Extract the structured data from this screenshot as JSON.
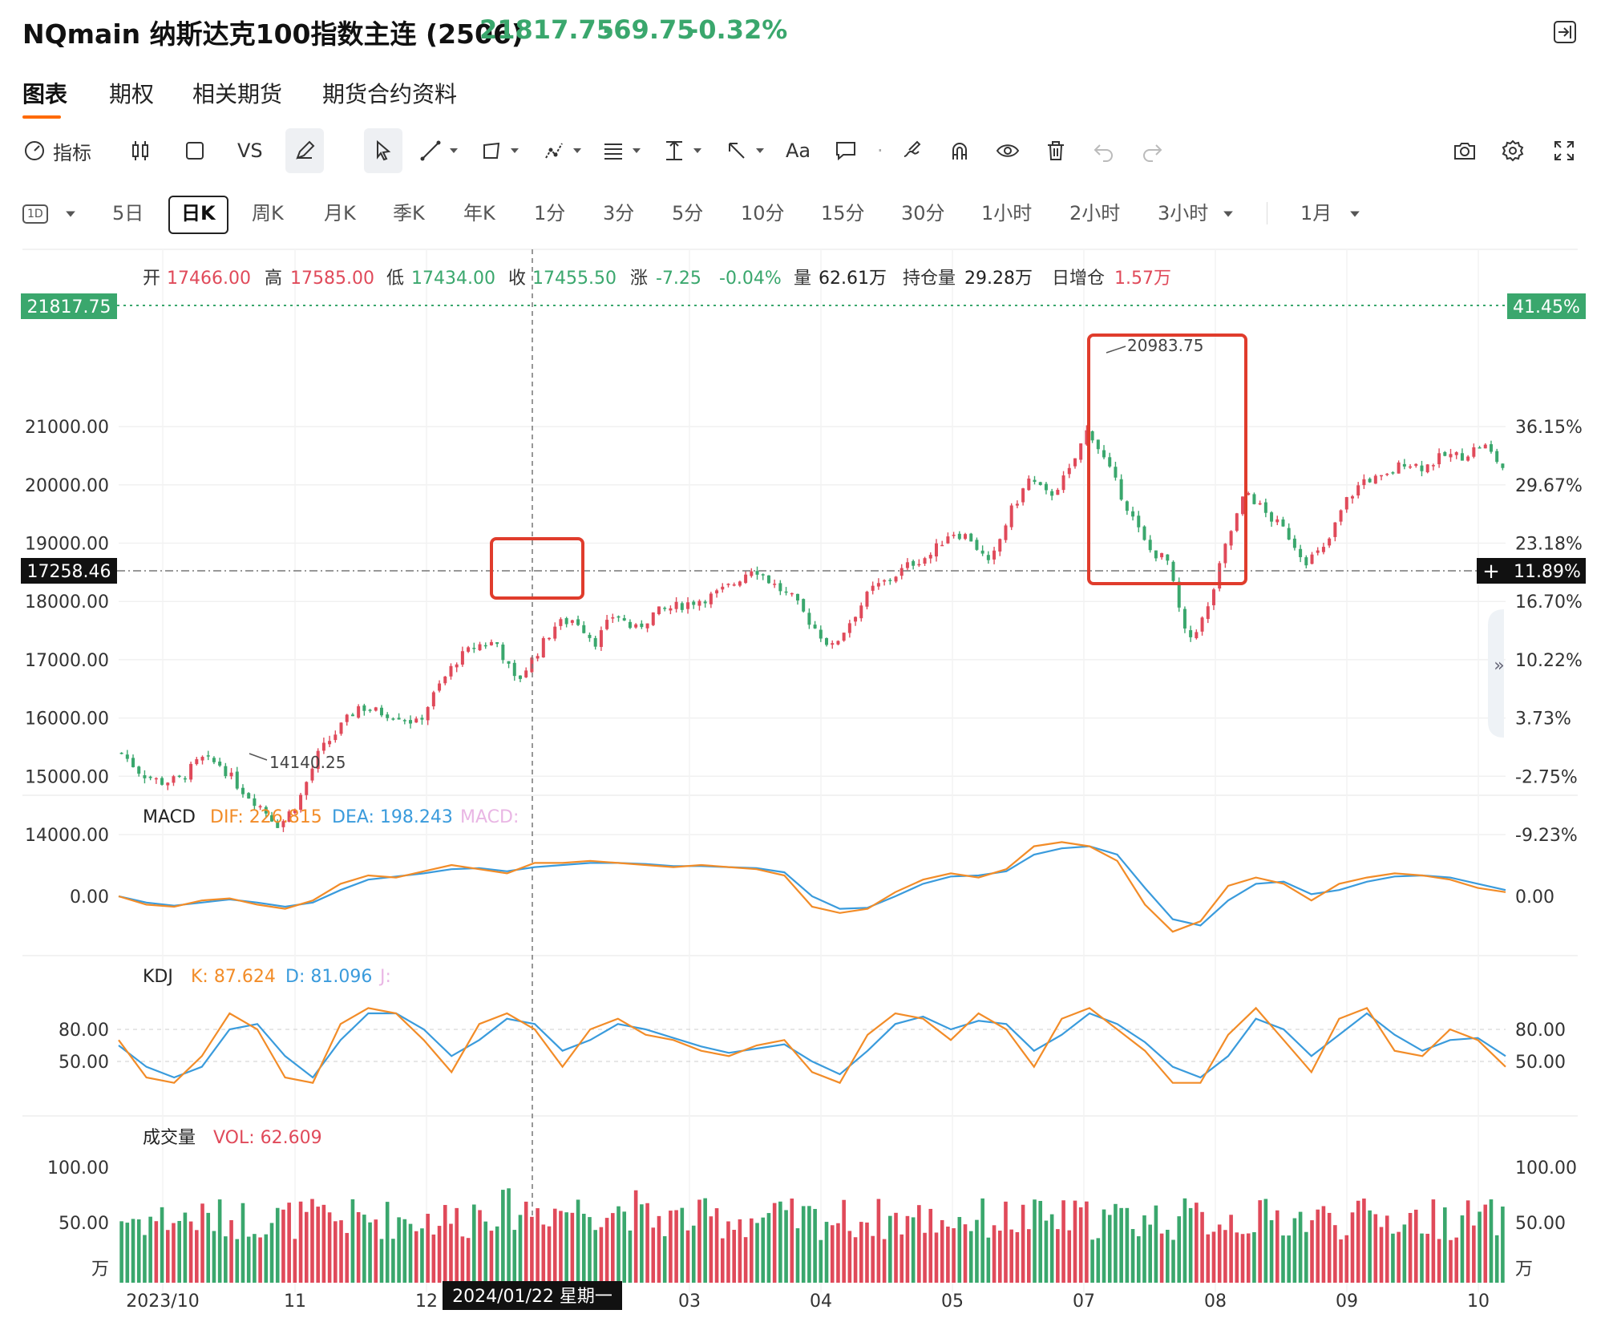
{
  "header": {
    "title": "NQmain 纳斯达克100指数主连 (2506)",
    "price": "21817.75",
    "change": "-69.75",
    "change_pct": "-0.32%",
    "quote_color": "#3aa76d"
  },
  "tabs": [
    {
      "label": "图表",
      "active": true
    },
    {
      "label": "期权",
      "active": false
    },
    {
      "label": "相关期货",
      "active": false
    },
    {
      "label": "期货合约资料",
      "active": false
    }
  ],
  "toolbar": {
    "indicator_label": "指标",
    "vs_label": "VS",
    "text_label": "Aa",
    "icons": [
      "gauge-icon",
      "candle-icon",
      "rectangle-icon",
      "pencil-icon",
      "cursor-icon",
      "line-tool-icon",
      "shape-tool-icon",
      "node-tool-icon",
      "fib-tool-icon",
      "measure-tool-icon",
      "arrow-tool-icon",
      "text-icon",
      "comment-icon",
      "magnet-icon",
      "brush-icon",
      "eye-icon",
      "trash-icon",
      "undo-icon",
      "redo-icon",
      "camera-icon",
      "gear-icon",
      "fullscreen-icon"
    ]
  },
  "periods": {
    "interval_badge": "1D",
    "items": [
      "5日",
      "日K",
      "周K",
      "月K",
      "季K",
      "年K",
      "1分",
      "3分",
      "5分",
      "10分",
      "15分",
      "30分",
      "1小时",
      "2小时",
      "3小时"
    ],
    "active": "日K",
    "range": "1月"
  },
  "ohlc_bar": {
    "open_label": "开",
    "open": "17466.00",
    "high_label": "高",
    "high": "17585.00",
    "low_label": "低",
    "low": "17434.00",
    "close_label": "收",
    "close": "17455.50",
    "chg_label": "涨",
    "chg": "-7.25",
    "chg_pct": "-0.04%",
    "vol_label": "量",
    "vol": "62.61万",
    "oi_label": "持仓量",
    "oi": "29.28万",
    "oi_chg_label": "日增仓",
    "oi_chg": "1.57万",
    "up_color": "#e04a5a",
    "down_color": "#3aa76d"
  },
  "chart_data": {
    "type": "candlestick",
    "price_axis_left": [
      "21000.00",
      "20000.00",
      "19000.00",
      "18000.00",
      "17000.00",
      "16000.00",
      "15000.00",
      "14000.00"
    ],
    "price_axis_right": [
      "36.15%",
      "29.67%",
      "23.18%",
      "16.70%",
      "10.22%",
      "3.73%",
      "-2.75%",
      "-9.23%"
    ],
    "last_price_tag": "21817.75",
    "last_pct_tag": "41.45%",
    "crosshair_price": "17258.46",
    "crosshair_pct": "11.89%",
    "crosshair_date": "2024/01/22 星期一",
    "annotations": {
      "max_label": "20983.75",
      "min_label": "14140.25"
    },
    "x_ticks": [
      "2023/10",
      "11",
      "12",
      "03",
      "04",
      "05",
      "07",
      "08",
      "09",
      "10"
    ],
    "price_path": [
      15400,
      15050,
      14900,
      14950,
      15300,
      15200,
      14800,
      14500,
      14150,
      14600,
      15400,
      15800,
      16200,
      16100,
      16050,
      15900,
      16500,
      17000,
      17250,
      17300,
      16600,
      17100,
      17600,
      17700,
      17300,
      17800,
      17500,
      17800,
      17900,
      18000,
      18100,
      18300,
      18600,
      18300,
      18050,
      17600,
      17200,
      17700,
      18200,
      18400,
      18650,
      18800,
      19200,
      19100,
      18600,
      19500,
      20100,
      19800,
      20200,
      20980,
      20300,
      19600,
      18900,
      18700,
      17300,
      17800,
      19000,
      19900,
      19500,
      19200,
      18700,
      18900,
      19700,
      20100,
      20100,
      20400,
      20300,
      20500,
      20500,
      20700,
      20300
    ],
    "macd": {
      "label": "MACD",
      "dif_label": "DIF: 226.815",
      "dea_label": "DEA: 198.243",
      "macd_label": "MACD:",
      "zero_label": "0.00",
      "dif": [
        0,
        -40,
        -50,
        -20,
        -10,
        -40,
        -60,
        -20,
        60,
        100,
        90,
        120,
        150,
        130,
        110,
        160,
        160,
        170,
        160,
        150,
        140,
        150,
        140,
        130,
        100,
        -50,
        -80,
        -60,
        20,
        80,
        110,
        90,
        130,
        240,
        260,
        240,
        170,
        -40,
        -170,
        -120,
        50,
        90,
        60,
        -20,
        60,
        90,
        110,
        100,
        80,
        40,
        20
      ],
      "dea": [
        0,
        -30,
        -45,
        -30,
        -15,
        -30,
        -50,
        -30,
        30,
        80,
        95,
        110,
        130,
        135,
        120,
        140,
        150,
        160,
        160,
        155,
        145,
        145,
        140,
        135,
        115,
        0,
        -60,
        -55,
        0,
        60,
        95,
        100,
        120,
        200,
        230,
        240,
        200,
        40,
        -110,
        -140,
        -20,
        60,
        70,
        10,
        30,
        70,
        95,
        100,
        90,
        60,
        30
      ]
    },
    "kdj": {
      "label": "KDJ",
      "k_label": "K: 87.624",
      "d_label": "D: 81.096",
      "j_label": "J:",
      "ticks": [
        "80.00",
        "50.00"
      ],
      "k": [
        70,
        35,
        30,
        55,
        95,
        80,
        35,
        30,
        85,
        100,
        95,
        70,
        40,
        85,
        95,
        80,
        45,
        80,
        90,
        75,
        70,
        60,
        55,
        65,
        70,
        40,
        30,
        75,
        95,
        90,
        70,
        95,
        80,
        45,
        90,
        100,
        80,
        60,
        30,
        30,
        75,
        100,
        70,
        40,
        90,
        100,
        60,
        55,
        80,
        70,
        45
      ],
      "d": [
        65,
        45,
        35,
        45,
        80,
        85,
        55,
        35,
        70,
        95,
        95,
        80,
        55,
        70,
        90,
        85,
        60,
        70,
        85,
        80,
        72,
        64,
        58,
        62,
        66,
        50,
        38,
        60,
        85,
        92,
        80,
        88,
        85,
        60,
        75,
        95,
        85,
        68,
        45,
        35,
        55,
        90,
        80,
        55,
        75,
        95,
        75,
        60,
        70,
        72,
        55
      ]
    },
    "volume": {
      "label": "成交量",
      "vol_label": "VOL: 62.609",
      "ticks": [
        "100.00",
        "50.00"
      ],
      "unit": "万"
    }
  }
}
